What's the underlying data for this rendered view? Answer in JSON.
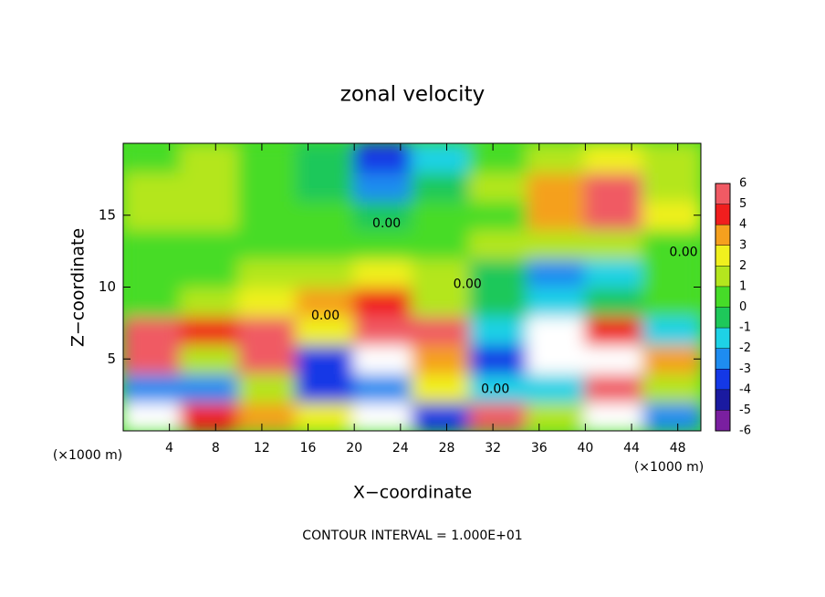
{
  "chart_data": {
    "type": "contour",
    "title": "zonal velocity",
    "x_label": "X−coordinate",
    "y_label": "Z−coordinate",
    "x_unit_label": "(×1000 m)",
    "y_unit_label": "(×1000 m)",
    "footer": "CONTOUR INTERVAL = 1.000E+01",
    "x": [
      2.5,
      7.5,
      12.5,
      17.5,
      22.5,
      27.5,
      32.5,
      37.5,
      42.5,
      47.5
    ],
    "y": [
      1,
      3,
      5,
      7,
      9,
      11,
      13,
      15,
      17,
      19
    ],
    "z": [
      [
        10,
        4,
        3,
        2,
        10,
        -4,
        5,
        1,
        10,
        -3
      ],
      [
        -3,
        -3,
        1,
        -4,
        -3,
        2,
        -2,
        -2,
        6,
        1
      ],
      [
        6,
        1,
        6,
        -4,
        10,
        3,
        -4,
        8,
        10,
        3
      ],
      [
        5,
        4,
        5,
        2,
        5,
        5,
        -2,
        8,
        4,
        -2
      ],
      [
        0.5,
        1,
        2,
        3,
        4,
        1,
        -1,
        -2,
        -1,
        0
      ],
      [
        0,
        0.5,
        1,
        1.5,
        2,
        1,
        -1,
        -3,
        -2,
        0
      ],
      [
        0,
        0.5,
        0.5,
        0.5,
        0,
        0.5,
        1,
        1.5,
        1,
        0
      ],
      [
        1,
        1,
        0.5,
        0,
        -1,
        0,
        0.5,
        3,
        5,
        2
      ],
      [
        1,
        1,
        0.5,
        -1,
        -3,
        -1,
        1,
        3,
        5,
        1.5
      ],
      [
        0.5,
        1,
        0.5,
        -1,
        -4,
        -2,
        0.5,
        1.5,
        2,
        1
      ]
    ],
    "xlim": [
      0,
      50
    ],
    "ylim": [
      0,
      20
    ],
    "xticks": [
      4,
      8,
      12,
      16,
      20,
      24,
      28,
      32,
      36,
      40,
      44,
      48
    ],
    "yticks": [
      5,
      10,
      15
    ],
    "colorbar_ticks": [
      -6,
      -5,
      -4,
      -3,
      -2,
      -1,
      0,
      1,
      2,
      3,
      4,
      5,
      6
    ],
    "colormap": [
      "#7a1fa0",
      "#1a1aa0",
      "#1438e6",
      "#1e8cf0",
      "#1ed2e6",
      "#1ec85a",
      "#46dc28",
      "#b4e61e",
      "#f0f01e",
      "#f5a01e",
      "#f01e1e",
      "#f05a64"
    ],
    "out_of_range_color": "#ffffff",
    "contour_labels": [
      {
        "text": "0.00",
        "x": 22.8,
        "y": 14.4
      },
      {
        "text": "0.00",
        "x": 29.8,
        "y": 10.2
      },
      {
        "text": "0.00",
        "x": 17.5,
        "y": 8.0
      },
      {
        "text": "0.00",
        "x": 32.2,
        "y": 2.9
      },
      {
        "text": "0.00",
        "x": 48.5,
        "y": 12.4
      }
    ]
  }
}
